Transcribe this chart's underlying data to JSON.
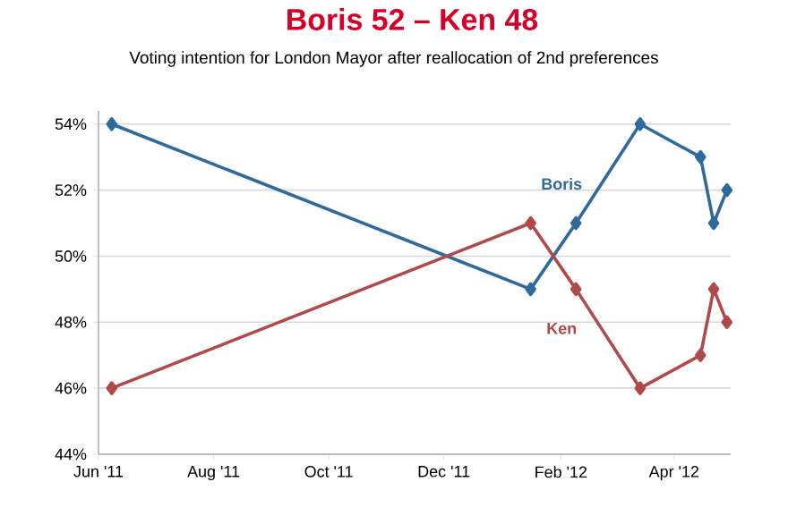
{
  "chart_data": {
    "type": "line",
    "title": "Boris 52 – Ken 48",
    "subtitle": "Voting intention for London Mayor after reallocation of 2nd preferences",
    "series": [
      {
        "name": "Boris",
        "color": "#2f6a9c",
        "x": [
          "2011-06-08",
          "2012-01-16",
          "2012-02-09",
          "2012-03-14",
          "2012-04-15",
          "2012-04-22",
          "2012-04-29"
        ],
        "values": [
          54,
          49,
          51,
          54,
          53,
          51,
          52
        ]
      },
      {
        "name": "Ken",
        "color": "#b04a4a",
        "x": [
          "2011-06-08",
          "2012-01-16",
          "2012-02-09",
          "2012-03-14",
          "2012-04-15",
          "2012-04-22",
          "2012-04-29"
        ],
        "values": [
          46,
          51,
          49,
          46,
          47,
          49,
          48
        ]
      }
    ],
    "xlim": [
      "2011-06-01",
      "2012-05-01"
    ],
    "xticks": [
      {
        "value": "2011-06-01",
        "label": "Jun '11"
      },
      {
        "value": "2011-08-01",
        "label": "Aug '11"
      },
      {
        "value": "2011-10-01",
        "label": "Oct '11"
      },
      {
        "value": "2011-12-01",
        "label": "Dec '11"
      },
      {
        "value": "2012-02-01",
        "label": "Feb '12"
      },
      {
        "value": "2012-04-01",
        "label": "Apr '12"
      }
    ],
    "ylim": [
      44,
      54.4
    ],
    "yticks": [
      {
        "value": 44,
        "label": "44%"
      },
      {
        "value": 46,
        "label": "46%"
      },
      {
        "value": 48,
        "label": "48%"
      },
      {
        "value": 50,
        "label": "50%"
      },
      {
        "value": 52,
        "label": "52%"
      },
      {
        "value": 54,
        "label": "54%"
      }
    ],
    "grid": "y",
    "marker": "diamond",
    "line_style": "solid"
  }
}
